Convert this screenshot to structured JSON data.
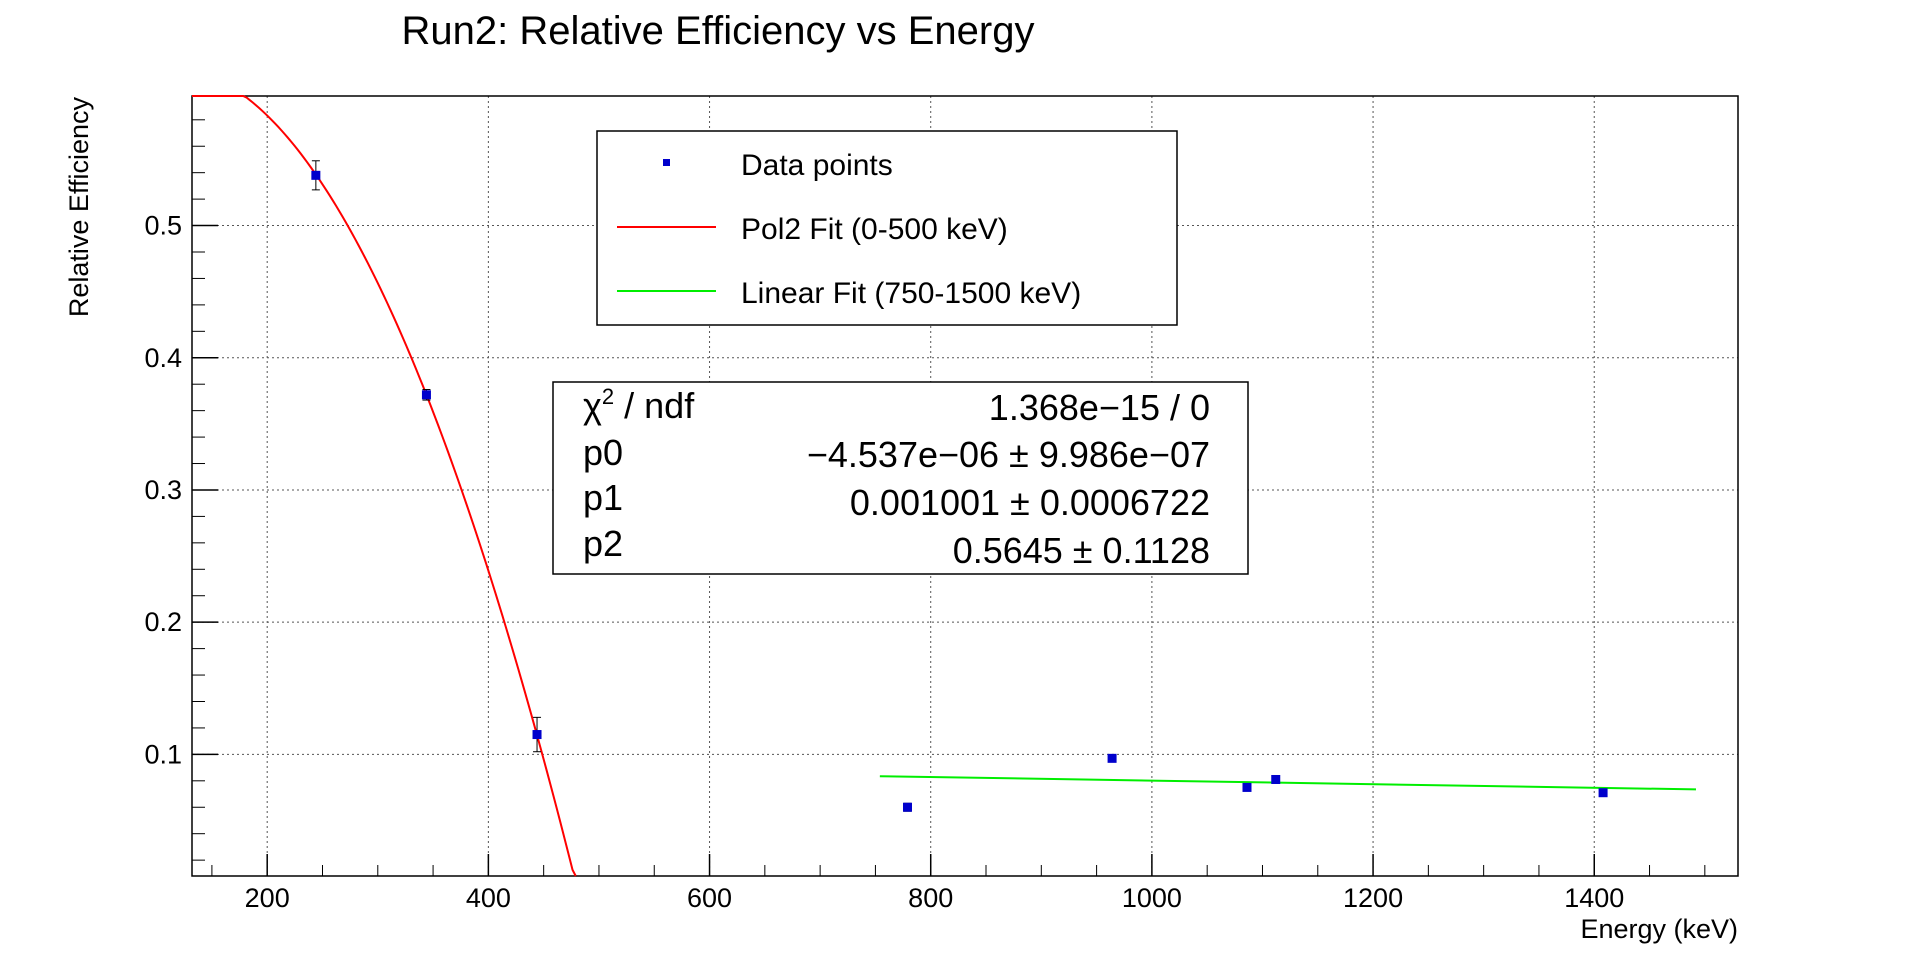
{
  "chart_data": {
    "type": "scatter",
    "title": "Run2: Relative Efficiency vs Energy",
    "xlabel": "Energy (keV)",
    "ylabel": "Relative Efficiency",
    "xlim": [
      132,
      1530
    ],
    "ylim": [
      0.008,
      0.598
    ],
    "x_ticks": [
      200,
      400,
      600,
      800,
      1000,
      1200,
      1400
    ],
    "x_tick_labels": [
      "200",
      "400",
      "600",
      "800",
      "1000",
      "1200",
      "1400"
    ],
    "y_ticks": [
      0.1,
      0.2,
      0.3,
      0.4,
      0.5
    ],
    "y_tick_labels": [
      "0.1",
      "0.2",
      "0.3",
      "0.4",
      "0.5"
    ],
    "grid": true,
    "data_points": {
      "name": "Data points",
      "color": "#0000cc",
      "points": [
        {
          "x": 244,
          "y": 0.538,
          "err": 0.011
        },
        {
          "x": 344,
          "y": 0.372,
          "err": 0.004
        },
        {
          "x": 444,
          "y": 0.115,
          "err": 0.013
        },
        {
          "x": 779,
          "y": 0.06,
          "err": 0.003
        },
        {
          "x": 964,
          "y": 0.097,
          "err": 0.002
        },
        {
          "x": 1086,
          "y": 0.075,
          "err": 0.002
        },
        {
          "x": 1112,
          "y": 0.081,
          "err": 0.002
        },
        {
          "x": 1408,
          "y": 0.071,
          "err": 0.002
        }
      ]
    },
    "fits": [
      {
        "name": "Pol2 Fit (0-500 keV)",
        "color": "#ff0000",
        "type": "pol2",
        "coef": [
          0.5645,
          0.001001,
          -4.537e-06
        ],
        "xrange": [
          132,
          479
        ]
      },
      {
        "name": "Linear Fit (750-1500 keV)",
        "color": "#00ee00",
        "type": "line",
        "points": [
          [
            754,
            0.0835
          ],
          [
            1492,
            0.0735
          ]
        ]
      }
    ],
    "legend": {
      "placement": "top-center",
      "entries": [
        "Data points",
        "Pol2 Fit (0-500 keV)",
        "Linear Fit (750-1500 keV)"
      ]
    },
    "stats": {
      "rows": [
        {
          "name": "chi2-ndf",
          "label_main": "χ",
          "label_sup": "2",
          "label_rest": " / ndf",
          "value": "1.368e−15 / 0"
        },
        {
          "name": "p0",
          "label": "p0",
          "value": "−4.537e−06 ± 9.986e−07"
        },
        {
          "name": "p1",
          "label": "p1",
          "value": "0.001001 ± 0.0006722"
        },
        {
          "name": "p2",
          "label": "p2",
          "value": "0.5645 ± 0.1128"
        }
      ]
    }
  }
}
